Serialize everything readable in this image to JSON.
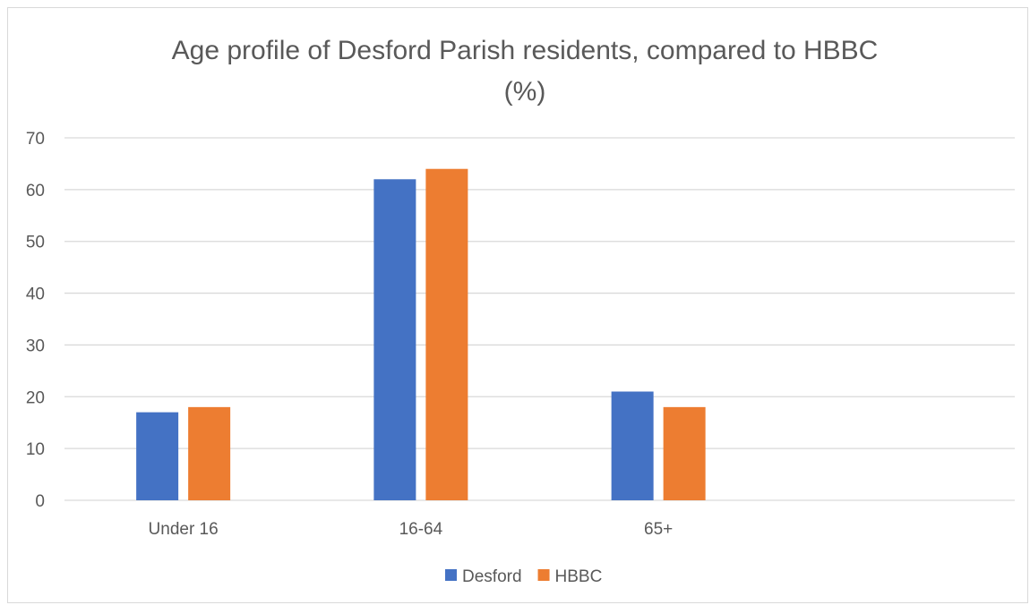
{
  "chart_data": {
    "type": "bar",
    "title_lines": [
      "Age profile of Desford Parish residents, compared to HBBC",
      "(%)"
    ],
    "categories": [
      "Under 16",
      "16-64",
      "65+"
    ],
    "series": [
      {
        "name": "Desford",
        "values": [
          17,
          62,
          21
        ],
        "color": "#4472c4"
      },
      {
        "name": "HBBC",
        "values": [
          18,
          64,
          18
        ],
        "color": "#ed7d31"
      }
    ],
    "ylim": [
      0,
      70
    ],
    "yticks": [
      0,
      10,
      20,
      30,
      40,
      50,
      60,
      70
    ],
    "grid": true,
    "legend_position": "bottom",
    "category_slots": 4
  }
}
